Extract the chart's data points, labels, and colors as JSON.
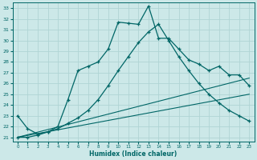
{
  "xlabel": "Humidex (Indice chaleur)",
  "xlim": [
    -0.5,
    23.5
  ],
  "ylim": [
    20.6,
    33.5
  ],
  "yticks": [
    21,
    22,
    23,
    24,
    25,
    26,
    27,
    28,
    29,
    30,
    31,
    32,
    33
  ],
  "xticks": [
    0,
    1,
    2,
    3,
    4,
    5,
    6,
    7,
    8,
    9,
    10,
    11,
    12,
    13,
    14,
    15,
    16,
    17,
    18,
    19,
    20,
    21,
    22,
    23
  ],
  "bg_color": "#cce8e8",
  "line_color": "#006666",
  "grid_color": "#b0d4d4",
  "line1_x": [
    0,
    1,
    2,
    3,
    4,
    5,
    6,
    7,
    8,
    9,
    10,
    11,
    12,
    13,
    14,
    15,
    16,
    17,
    18,
    19,
    20,
    21,
    22,
    23
  ],
  "line1_y": [
    23.0,
    21.8,
    21.3,
    21.5,
    22.0,
    24.5,
    27.2,
    27.6,
    28.0,
    29.2,
    31.7,
    31.6,
    31.5,
    33.2,
    30.2,
    30.2,
    29.2,
    28.2,
    27.8,
    27.2,
    27.6,
    26.8,
    26.8,
    25.8
  ],
  "line2_x": [
    0,
    1,
    2,
    3,
    4,
    5,
    6,
    7,
    8,
    9,
    10,
    11,
    12,
    13,
    14,
    15,
    16,
    17,
    18,
    19,
    20,
    21,
    22,
    23
  ],
  "line2_y": [
    21.0,
    21.0,
    21.2,
    21.5,
    21.8,
    22.3,
    22.8,
    23.5,
    24.5,
    25.8,
    27.2,
    28.5,
    29.8,
    30.8,
    31.5,
    30.0,
    28.5,
    27.2,
    26.0,
    25.0,
    24.2,
    23.5,
    23.0,
    22.5
  ],
  "line3_x": [
    0,
    23
  ],
  "line3_y": [
    21.0,
    26.5
  ],
  "line4_x": [
    0,
    23
  ],
  "line4_y": [
    21.0,
    25.0
  ]
}
